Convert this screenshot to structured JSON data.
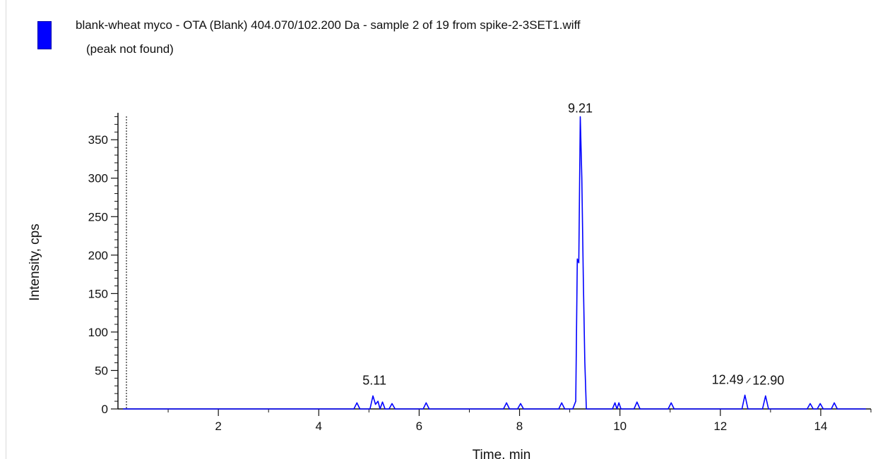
{
  "legend": {
    "title": "blank-wheat myco - OTA (Blank) 404.070/102.200 Da - sample 2 of 19 from spike-2-3SET1.wiff",
    "subtitle": "(peak not found)",
    "swatch_color": "#0000ff"
  },
  "chart_data": {
    "type": "line",
    "title": "",
    "xlabel": "Time, min",
    "ylabel": "Intensity, cps",
    "xlim": [
      0,
      15
    ],
    "ylim": [
      0,
      385
    ],
    "x_ticks": [
      2,
      4,
      6,
      8,
      10,
      12,
      14
    ],
    "y_ticks": [
      0,
      50,
      100,
      150,
      200,
      250,
      300,
      350
    ],
    "line_color": "#0000ff",
    "series": [
      {
        "x": [
          0.1,
          4.7,
          4.76,
          4.82,
          5.02,
          5.08,
          5.13,
          5.18,
          5.22,
          5.27,
          5.32,
          5.4,
          5.46,
          5.52,
          6.08,
          6.14,
          6.2,
          7.68,
          7.74,
          7.8,
          7.96,
          8.02,
          8.08,
          8.78,
          8.84,
          8.9,
          9.06,
          9.12,
          9.15,
          9.18,
          9.21,
          9.24,
          9.27,
          9.3,
          9.33,
          9.38,
          9.85,
          9.9,
          9.94,
          9.98,
          10.02,
          10.28,
          10.34,
          10.4,
          10.96,
          11.02,
          11.08,
          12.43,
          12.49,
          12.55,
          12.84,
          12.9,
          12.96,
          13.73,
          13.79,
          13.85,
          13.93,
          13.99,
          14.05,
          14.21,
          14.27,
          14.33,
          14.9
        ],
        "y": [
          0,
          0,
          8,
          0,
          0,
          17,
          6,
          10,
          0,
          9,
          0,
          0,
          7,
          0,
          0,
          8,
          0,
          0,
          8,
          0,
          0,
          7,
          0,
          0,
          8,
          0,
          0,
          10,
          195,
          190,
          380,
          300,
          170,
          62,
          0,
          0,
          0,
          8,
          0,
          8,
          0,
          0,
          9,
          0,
          0,
          8,
          0,
          0,
          18,
          0,
          0,
          17,
          0,
          0,
          7,
          0,
          0,
          7,
          0,
          0,
          8,
          0,
          0
        ]
      }
    ],
    "annotations": [
      {
        "text": "9.21",
        "x": 9.21,
        "y": 380
      },
      {
        "text": "5.11",
        "x": 5.11,
        "y": 17
      },
      {
        "text": "12.49",
        "x": 12.49,
        "y": 18
      },
      {
        "text": "12.90",
        "x": 12.9,
        "y": 17
      }
    ]
  }
}
